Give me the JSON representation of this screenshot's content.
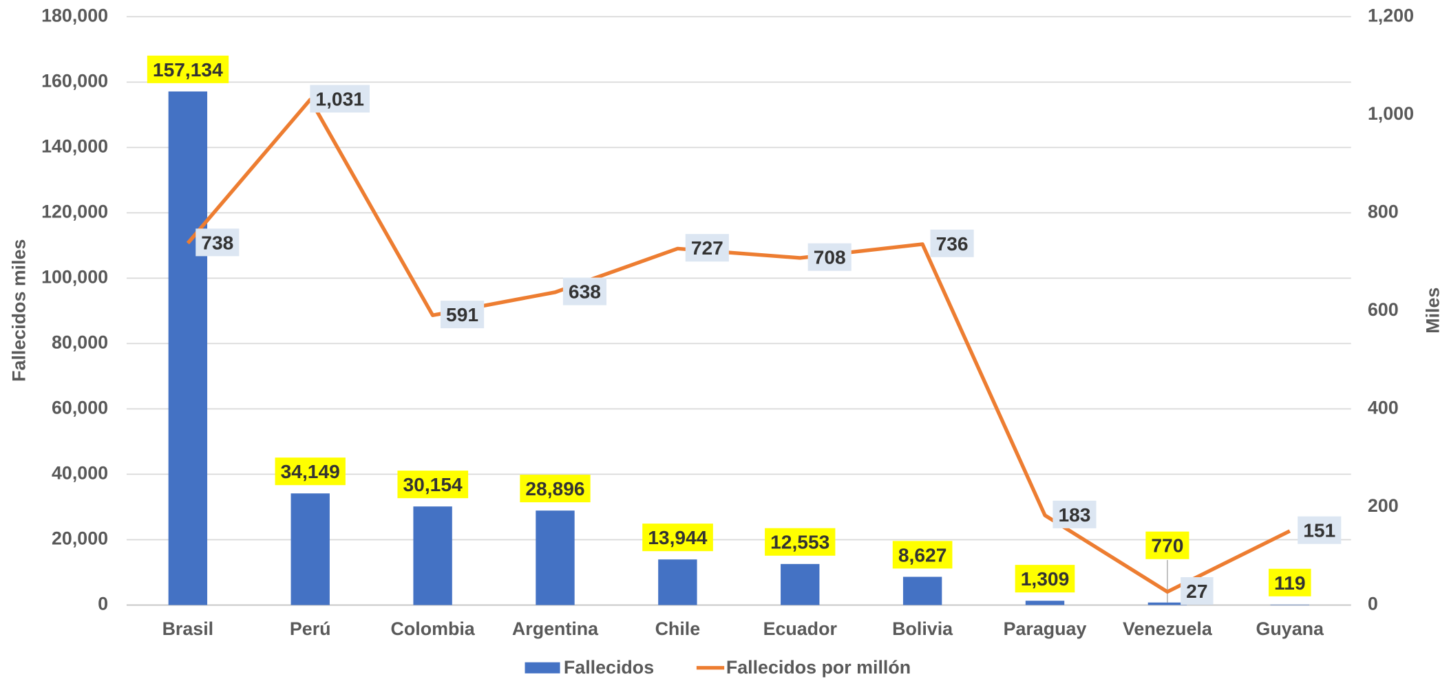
{
  "chart_data": {
    "type": "bar_line",
    "categories": [
      "Brasil",
      "Perú",
      "Colombia",
      "Argentina",
      "Chile",
      "Ecuador",
      "Bolivia",
      "Paraguay",
      "Venezuela",
      "Guyana"
    ],
    "series": [
      {
        "name": "Fallecidos",
        "type": "bar",
        "color": "#4472c4",
        "axis": "y",
        "values": [
          157134,
          34149,
          30154,
          28896,
          13944,
          12553,
          8627,
          1309,
          770,
          119
        ],
        "value_labels": [
          "157,134",
          "34,149",
          "30,154",
          "28,896",
          "13,944",
          "12,553",
          "8,627",
          "1,309",
          "770",
          "119"
        ]
      },
      {
        "name": "Fallecidos por millón",
        "type": "line",
        "color": "#ed7d31",
        "axis": "y2",
        "values": [
          738,
          1031,
          591,
          638,
          727,
          708,
          736,
          183,
          27,
          151
        ],
        "value_labels": [
          "738",
          "1,031",
          "591",
          "638",
          "727",
          "708",
          "736",
          "183",
          "27",
          "151"
        ]
      }
    ],
    "ylabel": "Fallecidos miles",
    "y2label": "Miles",
    "ylim": [
      0,
      180000
    ],
    "yticks": [
      0,
      {
        "value": 20000,
        "label": "20,000"
      },
      {
        "value": 40000,
        "label": "40,000"
      },
      {
        "value": 60000,
        "label": "60,000"
      },
      {
        "value": 80000,
        "label": "80,000"
      },
      {
        "value": 100000,
        "label": "100,000"
      },
      {
        "value": 120000,
        "label": "120,000"
      },
      {
        "value": 140000,
        "label": "140,000"
      },
      {
        "value": 160000,
        "label": "160,000"
      },
      {
        "value": 180000,
        "label": "180,000"
      }
    ],
    "y2lim": [
      0,
      1200
    ],
    "y2ticks": [
      0,
      200,
      400,
      600,
      800,
      {
        "value": 1000,
        "label": "1,000"
      },
      {
        "value": 1200,
        "label": "1,200"
      }
    ],
    "grid": true,
    "legend": "bottom"
  }
}
